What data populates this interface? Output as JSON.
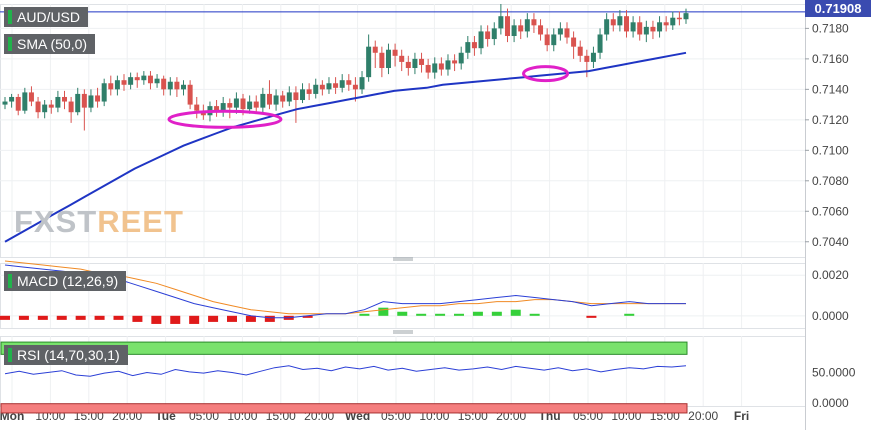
{
  "brand": {
    "left": "FXST",
    "right": "REET"
  },
  "labels": {
    "symbol": "AUD/USD",
    "sma": "SMA (50,0)",
    "macd": "MACD (12,26,9)",
    "rsi": "RSI (14,70,30,1)",
    "last_price": "0.71908"
  },
  "colors": {
    "bull": "#2f7f6a",
    "bear": "#d9534f",
    "sma": "#1f35c4",
    "ellipse": "#e020c8",
    "macd_line": "#2b3fd6",
    "signal_line": "#f08a24",
    "rsi_line": "#2b3fd6",
    "overbought": "#79e26c",
    "oversold": "#f47e7e"
  },
  "chart_data": [
    {
      "type": "candlestick",
      "title": "AUD/USD",
      "ylim": [
        0.703,
        0.7196
      ],
      "y_ticks": [
        "0.7180",
        "0.7160",
        "0.7140",
        "0.7120",
        "0.7100",
        "0.7080",
        "0.7060",
        "0.7040"
      ],
      "x_ticks": [
        "Mon",
        "10:00",
        "15:00",
        "20:00",
        "Tue",
        "05:00",
        "10:00",
        "15:00",
        "20:00",
        "Wed",
        "05:00",
        "10:00",
        "15:00",
        "20:00",
        "Thu",
        "05:00",
        "10:00",
        "15:00",
        "20:00",
        "Fri"
      ],
      "last_value": 0.71908,
      "candles": [
        [
          0.713,
          0.7132,
          0.7135,
          0.7127
        ],
        [
          0.7132,
          0.7135,
          0.7137,
          0.7128
        ],
        [
          0.7135,
          0.7126,
          0.7137,
          0.7123
        ],
        [
          0.7126,
          0.7138,
          0.7141,
          0.7124
        ],
        [
          0.7138,
          0.7132,
          0.7142,
          0.7129
        ],
        [
          0.7132,
          0.7125,
          0.7135,
          0.7121
        ],
        [
          0.7125,
          0.713,
          0.7133,
          0.7121
        ],
        [
          0.713,
          0.7128,
          0.7133,
          0.7124
        ],
        [
          0.7128,
          0.7135,
          0.7139,
          0.7125
        ],
        [
          0.7135,
          0.7132,
          0.7139,
          0.7127
        ],
        [
          0.7132,
          0.7125,
          0.7135,
          0.7118
        ],
        [
          0.7125,
          0.7137,
          0.7141,
          0.7123
        ],
        [
          0.7137,
          0.7128,
          0.714,
          0.7113
        ],
        [
          0.7128,
          0.7136,
          0.714,
          0.7125
        ],
        [
          0.7136,
          0.7132,
          0.7141,
          0.7128
        ],
        [
          0.7132,
          0.7144,
          0.7147,
          0.7129
        ],
        [
          0.7144,
          0.714,
          0.7149,
          0.7136
        ],
        [
          0.714,
          0.7146,
          0.7149,
          0.7136
        ],
        [
          0.7146,
          0.7143,
          0.715,
          0.7139
        ],
        [
          0.7143,
          0.7148,
          0.7151,
          0.714
        ],
        [
          0.7148,
          0.7146,
          0.7151,
          0.7141
        ],
        [
          0.7146,
          0.7149,
          0.7152,
          0.7143
        ],
        [
          0.7149,
          0.7144,
          0.7152,
          0.714
        ],
        [
          0.7144,
          0.7147,
          0.715,
          0.7141
        ],
        [
          0.7147,
          0.714,
          0.7149,
          0.7136
        ],
        [
          0.714,
          0.7145,
          0.7148,
          0.7136
        ],
        [
          0.7145,
          0.714,
          0.7148,
          0.7135
        ],
        [
          0.714,
          0.7143,
          0.7146,
          0.7136
        ],
        [
          0.7143,
          0.713,
          0.7146,
          0.7127
        ],
        [
          0.713,
          0.7126,
          0.7135,
          0.7121
        ],
        [
          0.7126,
          0.7123,
          0.713,
          0.712
        ],
        [
          0.7123,
          0.7129,
          0.7132,
          0.7119
        ],
        [
          0.7129,
          0.7126,
          0.7133,
          0.7122
        ],
        [
          0.7126,
          0.7131,
          0.7135,
          0.7122
        ],
        [
          0.7131,
          0.7128,
          0.7134,
          0.7121
        ],
        [
          0.7128,
          0.7134,
          0.7138,
          0.7124
        ],
        [
          0.7134,
          0.7127,
          0.7137,
          0.7123
        ],
        [
          0.7127,
          0.7132,
          0.7136,
          0.7124
        ],
        [
          0.7132,
          0.7128,
          0.7136,
          0.7124
        ],
        [
          0.7128,
          0.7137,
          0.7141,
          0.7125
        ],
        [
          0.7137,
          0.713,
          0.7146,
          0.7127
        ],
        [
          0.713,
          0.7136,
          0.714,
          0.7126
        ],
        [
          0.7136,
          0.7132,
          0.7139,
          0.7128
        ],
        [
          0.7132,
          0.7138,
          0.7142,
          0.7129
        ],
        [
          0.7138,
          0.7133,
          0.7142,
          0.7118
        ],
        [
          0.7133,
          0.714,
          0.7144,
          0.7131
        ],
        [
          0.714,
          0.7137,
          0.7144,
          0.7133
        ],
        [
          0.7137,
          0.7143,
          0.7147,
          0.7134
        ],
        [
          0.7143,
          0.714,
          0.7146,
          0.7136
        ],
        [
          0.714,
          0.7144,
          0.7148,
          0.7137
        ],
        [
          0.7144,
          0.7141,
          0.7148,
          0.7137
        ],
        [
          0.7141,
          0.7146,
          0.715,
          0.7138
        ],
        [
          0.7146,
          0.7143,
          0.715,
          0.7139
        ],
        [
          0.7143,
          0.714,
          0.7148,
          0.7132
        ],
        [
          0.714,
          0.7148,
          0.7152,
          0.7137
        ],
        [
          0.7148,
          0.7168,
          0.7176,
          0.7145
        ],
        [
          0.7168,
          0.7164,
          0.7172,
          0.7154
        ],
        [
          0.7164,
          0.7154,
          0.7168,
          0.7148
        ],
        [
          0.7154,
          0.7166,
          0.717,
          0.715
        ],
        [
          0.7166,
          0.7162,
          0.717,
          0.7155
        ],
        [
          0.7162,
          0.7158,
          0.7166,
          0.7152
        ],
        [
          0.7158,
          0.7154,
          0.7162,
          0.7149
        ],
        [
          0.7154,
          0.716,
          0.7164,
          0.715
        ],
        [
          0.716,
          0.7156,
          0.7164,
          0.7151
        ],
        [
          0.7156,
          0.7151,
          0.716,
          0.7147
        ],
        [
          0.7151,
          0.7157,
          0.7161,
          0.7147
        ],
        [
          0.7157,
          0.7153,
          0.7161,
          0.7149
        ],
        [
          0.7153,
          0.7159,
          0.7163,
          0.7149
        ],
        [
          0.7159,
          0.7157,
          0.7163,
          0.7152
        ],
        [
          0.7157,
          0.7164,
          0.7168,
          0.7153
        ],
        [
          0.7164,
          0.7171,
          0.7175,
          0.716
        ],
        [
          0.7171,
          0.7167,
          0.7175,
          0.7162
        ],
        [
          0.7167,
          0.7178,
          0.7182,
          0.7163
        ],
        [
          0.7178,
          0.7173,
          0.7182,
          0.7168
        ],
        [
          0.7173,
          0.718,
          0.7184,
          0.7169
        ],
        [
          0.718,
          0.7188,
          0.7196,
          0.7176
        ],
        [
          0.7188,
          0.7175,
          0.7193,
          0.7171
        ],
        [
          0.7175,
          0.7182,
          0.7186,
          0.7171
        ],
        [
          0.7182,
          0.7178,
          0.7186,
          0.7173
        ],
        [
          0.7178,
          0.7186,
          0.719,
          0.7174
        ],
        [
          0.7186,
          0.7182,
          0.719,
          0.7177
        ],
        [
          0.7182,
          0.7176,
          0.7186,
          0.7172
        ],
        [
          0.7176,
          0.7169,
          0.718,
          0.7165
        ],
        [
          0.7169,
          0.7176,
          0.718,
          0.7165
        ],
        [
          0.7176,
          0.718,
          0.7184,
          0.7172
        ],
        [
          0.718,
          0.7174,
          0.7184,
          0.717
        ],
        [
          0.7174,
          0.7168,
          0.7178,
          0.716
        ],
        [
          0.7168,
          0.7162,
          0.7172,
          0.7158
        ],
        [
          0.7162,
          0.7158,
          0.7166,
          0.7148
        ],
        [
          0.7158,
          0.7164,
          0.7168,
          0.7154
        ],
        [
          0.7164,
          0.7176,
          0.718,
          0.716
        ],
        [
          0.7176,
          0.7186,
          0.719,
          0.7172
        ],
        [
          0.7186,
          0.7182,
          0.719,
          0.7178
        ],
        [
          0.7182,
          0.7188,
          0.7192,
          0.7178
        ],
        [
          0.7188,
          0.7178,
          0.7192,
          0.7174
        ],
        [
          0.7178,
          0.7184,
          0.7188,
          0.7174
        ],
        [
          0.7184,
          0.7176,
          0.7188,
          0.7172
        ],
        [
          0.7176,
          0.7181,
          0.7185,
          0.7171
        ],
        [
          0.7181,
          0.7178,
          0.7185,
          0.7173
        ],
        [
          0.7178,
          0.7184,
          0.7188,
          0.7174
        ],
        [
          0.7184,
          0.7182,
          0.7188,
          0.7178
        ],
        [
          0.7182,
          0.7187,
          0.7191,
          0.7179
        ],
        [
          0.7187,
          0.7186,
          0.7191,
          0.7182
        ],
        [
          0.7186,
          0.719,
          0.7193,
          0.7183
        ]
      ],
      "sma_50": [
        0.704,
        0.7046,
        0.7052,
        0.7058,
        0.7064,
        0.707,
        0.7076,
        0.7082,
        0.7088,
        0.7093,
        0.7098,
        0.7103,
        0.7107,
        0.7111,
        0.7115,
        0.7118,
        0.7121,
        0.7124,
        0.7127,
        0.7129,
        0.7131,
        0.7133,
        0.7135,
        0.7137,
        0.7139,
        0.714,
        0.7141,
        0.7143,
        0.7144,
        0.7145,
        0.7146,
        0.7147,
        0.7148,
        0.7149,
        0.715,
        0.7151,
        0.7152,
        0.7154,
        0.7156,
        0.7158,
        0.716,
        0.7162,
        0.7164
      ],
      "highlights": [
        {
          "x_index": 31,
          "y": 0.7121
        },
        {
          "x_index": 81,
          "y": 0.7151
        }
      ]
    },
    {
      "type": "line",
      "title": "MACD (12,26,9)",
      "ylim": [
        -0.0006,
        0.0026
      ],
      "y_ticks": [
        "0.0020",
        "0.0000"
      ],
      "series": [
        {
          "name": "MACD",
          "values": [
            0.0025,
            0.0024,
            0.0023,
            0.0022,
            0.0021,
            0.0019,
            0.0018,
            0.0015,
            0.0012,
            0.0009,
            0.0006,
            0.0004,
            0.0002,
            0.0,
            -0.0001,
            -0.0001,
            0.0,
            0.0001,
            0.0001,
            0.0003,
            0.0007,
            0.0006,
            0.0006,
            0.0006,
            0.0007,
            0.0008,
            0.0009,
            0.001,
            0.0009,
            0.0008,
            0.0007,
            0.0005,
            0.0006,
            0.0007,
            0.0006,
            0.0006,
            0.0006
          ]
        },
        {
          "name": "Signal",
          "values": [
            0.0027,
            0.0026,
            0.0025,
            0.0024,
            0.0023,
            0.0021,
            0.002,
            0.0018,
            0.0016,
            0.0013,
            0.001,
            0.0007,
            0.0005,
            0.0003,
            0.0002,
            0.0001,
            0.0001,
            0.0001,
            0.0001,
            0.0002,
            0.0003,
            0.0004,
            0.0005,
            0.0005,
            0.0006,
            0.0006,
            0.0007,
            0.0007,
            0.0008,
            0.0008,
            0.0007,
            0.0006,
            0.0006,
            0.0006,
            0.0006,
            0.0006,
            0.0006
          ]
        },
        {
          "name": "Histogram",
          "values": [
            -0.0002,
            -0.0002,
            -0.0002,
            -0.0002,
            -0.0002,
            -0.0002,
            -0.0002,
            -0.0003,
            -0.0004,
            -0.0004,
            -0.0004,
            -0.0003,
            -0.0003,
            -0.0003,
            -0.0003,
            -0.0002,
            -0.0001,
            0.0,
            0.0,
            0.0001,
            0.0004,
            0.0002,
            0.0001,
            0.0001,
            0.0001,
            0.0002,
            0.0002,
            0.0003,
            0.0001,
            0.0,
            0.0,
            -0.0001,
            0.0,
            0.0001,
            0.0,
            0.0,
            0.0
          ]
        }
      ]
    },
    {
      "type": "line",
      "title": "RSI (14,70,30,1)",
      "ylim": [
        -5,
        110
      ],
      "y_ticks": [
        "50.0000",
        "0.0000"
      ],
      "overbought": 70,
      "oversold": 30,
      "values": [
        48,
        52,
        47,
        50,
        53,
        46,
        44,
        49,
        52,
        45,
        50,
        47,
        55,
        51,
        49,
        53,
        50,
        46,
        52,
        58,
        61,
        55,
        57,
        53,
        59,
        56,
        60,
        54,
        57,
        52,
        55,
        58,
        54,
        56,
        59,
        55,
        60,
        57,
        54,
        58,
        53,
        56,
        51,
        55,
        58,
        56,
        60,
        59,
        61
      ]
    }
  ]
}
